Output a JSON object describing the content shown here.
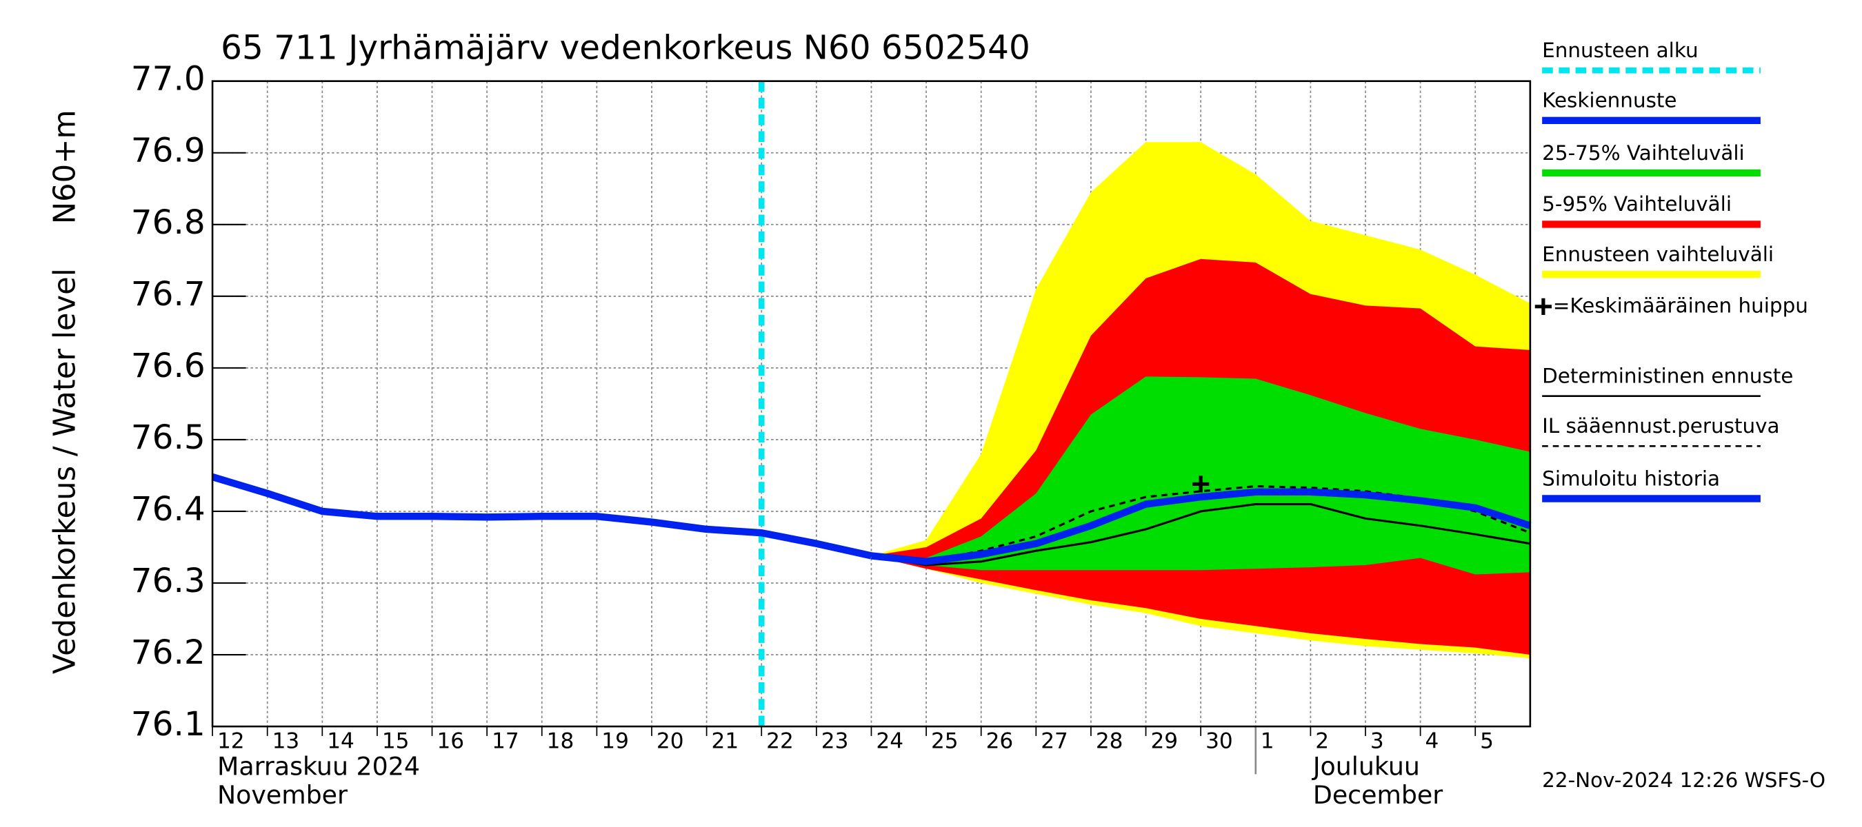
{
  "chart_data": {
    "type": "band-line",
    "title": "65 711 Jyrhämäjärv vedenkorkeus N60 6502540",
    "y_label_top": "N60+m",
    "y_label": "Vedenkorkeus / Water level",
    "x": [
      "2024-11-12",
      "2024-11-13",
      "2024-11-14",
      "2024-11-15",
      "2024-11-16",
      "2024-11-17",
      "2024-11-18",
      "2024-11-19",
      "2024-11-20",
      "2024-11-21",
      "2024-11-22",
      "2024-11-23",
      "2024-11-24",
      "2024-11-25",
      "2024-11-26",
      "2024-11-27",
      "2024-11-28",
      "2024-11-29",
      "2024-11-30",
      "2024-12-01",
      "2024-12-02",
      "2024-12-03",
      "2024-12-04",
      "2024-12-05",
      "2024-12-06"
    ],
    "xlim": [
      "2024-11-12",
      "2024-12-06"
    ],
    "xticks": [
      {
        "value": "2024-11-12",
        "label": "12"
      },
      {
        "value": "2024-11-13",
        "label": "13"
      },
      {
        "value": "2024-11-14",
        "label": "14"
      },
      {
        "value": "2024-11-15",
        "label": "15"
      },
      {
        "value": "2024-11-16",
        "label": "16"
      },
      {
        "value": "2024-11-17",
        "label": "17"
      },
      {
        "value": "2024-11-18",
        "label": "18"
      },
      {
        "value": "2024-11-19",
        "label": "19"
      },
      {
        "value": "2024-11-20",
        "label": "20"
      },
      {
        "value": "2024-11-21",
        "label": "21"
      },
      {
        "value": "2024-11-22",
        "label": "22"
      },
      {
        "value": "2024-11-23",
        "label": "23"
      },
      {
        "value": "2024-11-24",
        "label": "24"
      },
      {
        "value": "2024-11-25",
        "label": "25"
      },
      {
        "value": "2024-11-26",
        "label": "26"
      },
      {
        "value": "2024-11-27",
        "label": "27"
      },
      {
        "value": "2024-11-28",
        "label": "28"
      },
      {
        "value": "2024-11-29",
        "label": "29"
      },
      {
        "value": "2024-11-30",
        "label": "30"
      },
      {
        "value": "2024-12-01",
        "label": "1"
      },
      {
        "value": "2024-12-02",
        "label": "2"
      },
      {
        "value": "2024-12-03",
        "label": "3"
      },
      {
        "value": "2024-12-04",
        "label": "4"
      },
      {
        "value": "2024-12-05",
        "label": "5"
      }
    ],
    "months": [
      {
        "x": "2024-11-12",
        "label": "Marraskuu 2024",
        "label_en": "November"
      },
      {
        "x": "2024-12-01",
        "label": "Joulukuu",
        "label_en": "December"
      }
    ],
    "ylim": [
      76.1,
      77.0
    ],
    "yticks": [
      76.1,
      76.2,
      76.3,
      76.4,
      76.5,
      76.6,
      76.7,
      76.8,
      76.9,
      {
        "value": 77.0,
        "label": "77.0"
      }
    ],
    "grid": true,
    "forecast_start": {
      "name": "Ennusteen alku",
      "x": "2024-11-22",
      "color": "#00e5ee"
    },
    "bands": [
      {
        "name": "Ennusteen vaihteluväli",
        "color": "#ffff00",
        "upper": [
          null,
          null,
          null,
          null,
          null,
          null,
          null,
          null,
          null,
          null,
          null,
          null,
          76.338,
          76.36,
          76.48,
          76.71,
          76.845,
          76.915,
          76.915,
          76.87,
          76.805,
          76.785,
          76.765,
          76.73,
          76.69
        ],
        "lower": [
          null,
          null,
          null,
          null,
          null,
          null,
          null,
          null,
          null,
          null,
          null,
          null,
          76.338,
          76.32,
          76.3,
          76.285,
          76.27,
          76.258,
          76.24,
          76.23,
          76.22,
          76.212,
          76.207,
          76.202,
          76.195
        ]
      },
      {
        "name": "5-95% Vaihteluväli",
        "color": "#ff0000",
        "upper": [
          null,
          null,
          null,
          null,
          null,
          null,
          null,
          null,
          null,
          null,
          null,
          null,
          76.338,
          76.35,
          76.39,
          76.485,
          76.645,
          76.725,
          76.752,
          76.747,
          76.703,
          76.687,
          76.683,
          76.63,
          76.625
        ],
        "lower": [
          null,
          null,
          null,
          null,
          null,
          null,
          null,
          null,
          null,
          null,
          null,
          null,
          76.338,
          76.32,
          76.305,
          76.29,
          76.276,
          76.265,
          76.25,
          76.24,
          76.23,
          76.222,
          76.215,
          76.21,
          76.2
        ]
      },
      {
        "name": "25-75% Vaihteluväli",
        "color": "#00dd00",
        "upper": [
          null,
          null,
          null,
          null,
          null,
          null,
          null,
          null,
          null,
          null,
          null,
          null,
          76.338,
          76.335,
          76.365,
          76.425,
          76.535,
          76.588,
          76.587,
          76.585,
          76.562,
          76.537,
          76.515,
          76.5,
          76.483
        ],
        "lower": [
          null,
          null,
          null,
          null,
          null,
          null,
          null,
          null,
          null,
          null,
          null,
          null,
          76.338,
          76.325,
          76.318,
          76.318,
          76.318,
          76.318,
          76.318,
          76.32,
          76.322,
          76.325,
          76.335,
          76.312,
          76.315
        ]
      }
    ],
    "series": [
      {
        "name": "Simuloitu historia",
        "color": "#0022ee",
        "values": [
          76.448,
          76.425,
          76.4,
          76.393,
          76.393,
          76.392,
          76.393,
          76.393,
          76.385,
          76.375,
          76.37,
          76.355,
          76.338,
          null,
          null,
          null,
          null,
          null,
          null,
          null,
          null,
          null,
          null,
          null,
          null
        ]
      },
      {
        "name": "Deterministinen ennuste",
        "color": "#000000",
        "values": [
          null,
          null,
          null,
          null,
          null,
          null,
          null,
          null,
          null,
          null,
          null,
          null,
          76.338,
          76.325,
          76.33,
          76.345,
          76.357,
          76.375,
          76.4,
          76.41,
          76.41,
          76.39,
          76.38,
          76.368,
          76.355
        ]
      },
      {
        "name": "IL sääennust.perustuva",
        "color": "#000000",
        "dashed": true,
        "values": [
          null,
          null,
          null,
          null,
          null,
          null,
          null,
          null,
          null,
          null,
          null,
          null,
          76.338,
          76.33,
          76.345,
          76.365,
          76.4,
          76.42,
          76.428,
          76.435,
          76.433,
          76.428,
          76.418,
          76.4,
          76.37
        ]
      },
      {
        "name": "Keskiennuste",
        "color": "#0022ee",
        "values": [
          null,
          null,
          null,
          null,
          null,
          null,
          null,
          null,
          null,
          null,
          null,
          null,
          76.338,
          76.33,
          76.34,
          76.355,
          76.38,
          76.41,
          76.42,
          76.427,
          76.427,
          76.423,
          76.415,
          76.405,
          76.38
        ]
      }
    ],
    "peak": {
      "name": "=Keskimääräinen huippu",
      "x": "2024-11-30",
      "y": 76.438
    },
    "timestamp": "22-Nov-2024 12:26 WSFS-O"
  }
}
